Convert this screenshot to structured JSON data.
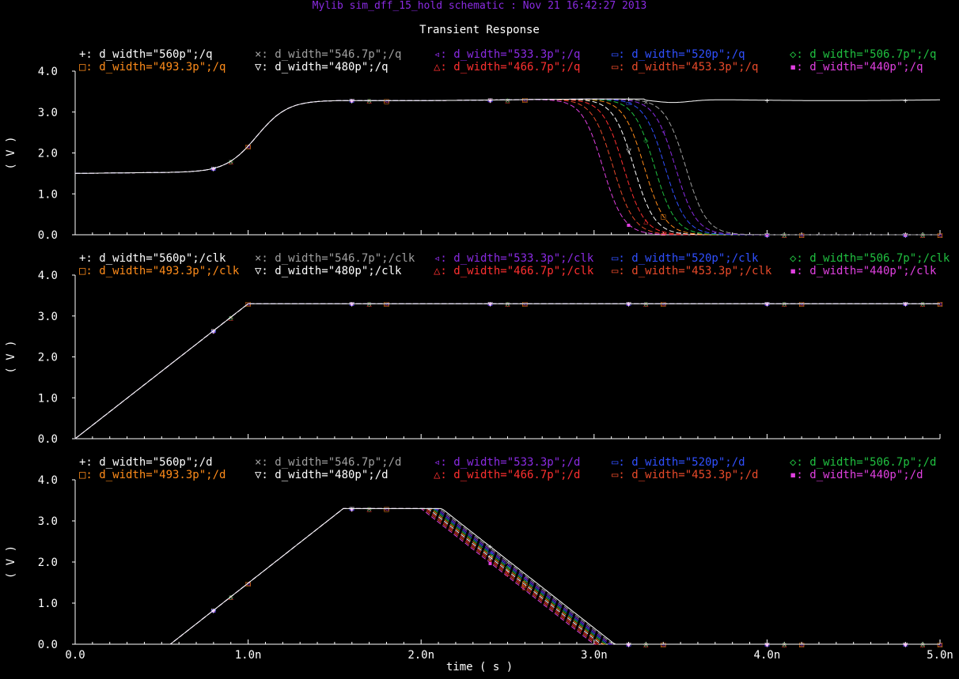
{
  "window_title": "Mylib sim_dff_15_hold schematic : Nov 21 16:42:27 2013",
  "plot_title": "Transient Response",
  "x_axis_label": "time ( s )",
  "y_axis_label": "( V )",
  "colors": {
    "background": "#000000",
    "axes": "#ffffff",
    "title": "#8a2be2"
  },
  "chart_data": [
    {
      "type": "line",
      "panel": "q",
      "ylabel": "( V )",
      "ylim": [
        0,
        4
      ],
      "yticks": [
        "0.0",
        "1.0",
        "2.0",
        "3.0",
        "4.0"
      ],
      "xlim": [
        0,
        5e-09
      ],
      "series": [
        {
          "name": "d_width=\"560p\";/q",
          "marker": "+",
          "color": "#ffffff",
          "fall_start": null
        },
        {
          "name": "d_width=\"546.7p\";/q",
          "marker": "×",
          "color": "#a0a0a0",
          "fall_start": 3.33e-09
        },
        {
          "name": "d_width=\"533.3p\";/q",
          "marker": "◃",
          "color": "#8a2be2",
          "fall_start": 3.27e-09
        },
        {
          "name": "d_width=\"520p\";/q",
          "marker": "▭",
          "color": "#3050ff",
          "fall_start": 3.21e-09
        },
        {
          "name": "d_width=\"506.7p\";/q",
          "marker": "◇",
          "color": "#20c040",
          "fall_start": 3.15e-09
        },
        {
          "name": "d_width=\"493.3p\";/q",
          "marker": "□",
          "color": "#ff8c1a",
          "fall_start": 3.09e-09
        },
        {
          "name": "d_width=\"480p\";/q",
          "marker": "▽",
          "color": "#ffffff",
          "fall_start": 3.03e-09
        },
        {
          "name": "d_width=\"466.7p\";/q",
          "marker": "△",
          "color": "#ff3030",
          "fall_start": 2.97e-09
        },
        {
          "name": "d_width=\"453.3p\";/q",
          "marker": "▭",
          "color": "#e84a2a",
          "fall_start": 2.91e-09
        },
        {
          "name": "d_width=\"440p\";/q",
          "marker": "▪",
          "color": "#e040e0",
          "fall_start": 2.85e-09
        }
      ]
    },
    {
      "type": "line",
      "panel": "clk",
      "ylabel": "( V )",
      "ylim": [
        0,
        4
      ],
      "yticks": [
        "0.0",
        "1.0",
        "2.0",
        "3.0",
        "4.0"
      ],
      "xlim": [
        0,
        5e-09
      ],
      "series": [
        {
          "name": "d_width=\"560p\";/clk",
          "marker": "+",
          "color": "#ffffff"
        },
        {
          "name": "d_width=\"546.7p\";/clk",
          "marker": "×",
          "color": "#a0a0a0"
        },
        {
          "name": "d_width=\"533.3p\";/clk",
          "marker": "◃",
          "color": "#8a2be2"
        },
        {
          "name": "d_width=\"520p\";/clk",
          "marker": "▭",
          "color": "#3050ff"
        },
        {
          "name": "d_width=\"506.7p\";/clk",
          "marker": "◇",
          "color": "#20c040"
        },
        {
          "name": "d_width=\"493.3p\";/clk",
          "marker": "□",
          "color": "#ff8c1a"
        },
        {
          "name": "d_width=\"480p\";/clk",
          "marker": "▽",
          "color": "#ffffff"
        },
        {
          "name": "d_width=\"466.7p\";/clk",
          "marker": "△",
          "color": "#ff3030"
        },
        {
          "name": "d_width=\"453.3p\";/clk",
          "marker": "▭",
          "color": "#e84a2a"
        },
        {
          "name": "d_width=\"440p\";/clk",
          "marker": "▪",
          "color": "#e040e0"
        }
      ],
      "waveform": {
        "rise_start": 0,
        "rise_end": 1e-09,
        "high": 3.3
      }
    },
    {
      "type": "line",
      "panel": "d",
      "ylabel": "( V )",
      "ylim": [
        0,
        4
      ],
      "yticks": [
        "0.0",
        "1.0",
        "2.0",
        "3.0",
        "4.0"
      ],
      "xlim": [
        0,
        5e-09
      ],
      "xticks": [
        "0.0",
        "1.0n",
        "2.0n",
        "3.0n",
        "4.0n",
        "5.0n"
      ],
      "series": [
        {
          "name": "d_width=\"560p\";/d",
          "marker": "+",
          "color": "#ffffff",
          "fall_start": 2.12e-09
        },
        {
          "name": "d_width=\"546.7p\";/d",
          "marker": "×",
          "color": "#a0a0a0",
          "fall_start": 2.107e-09
        },
        {
          "name": "d_width=\"533.3p\";/d",
          "marker": "◃",
          "color": "#8a2be2",
          "fall_start": 2.093e-09
        },
        {
          "name": "d_width=\"520p\";/d",
          "marker": "▭",
          "color": "#3050ff",
          "fall_start": 2.08e-09
        },
        {
          "name": "d_width=\"506.7p\";/d",
          "marker": "◇",
          "color": "#20c040",
          "fall_start": 2.067e-09
        },
        {
          "name": "d_width=\"493.3p\";/d",
          "marker": "□",
          "color": "#ff8c1a",
          "fall_start": 2.053e-09
        },
        {
          "name": "d_width=\"480p\";/d",
          "marker": "▽",
          "color": "#ffffff",
          "fall_start": 2.04e-09
        },
        {
          "name": "d_width=\"466.7p\";/d",
          "marker": "△",
          "color": "#ff3030",
          "fall_start": 2.027e-09
        },
        {
          "name": "d_width=\"453.3p\";/d",
          "marker": "▭",
          "color": "#e84a2a",
          "fall_start": 2.013e-09
        },
        {
          "name": "d_width=\"440p\";/d",
          "marker": "▪",
          "color": "#e040e0",
          "fall_start": 2e-09
        }
      ],
      "waveform": {
        "rise_start": 5.5e-10,
        "rise_end": 1.55e-09,
        "high": 3.3,
        "fall_duration": 1e-09
      }
    }
  ]
}
